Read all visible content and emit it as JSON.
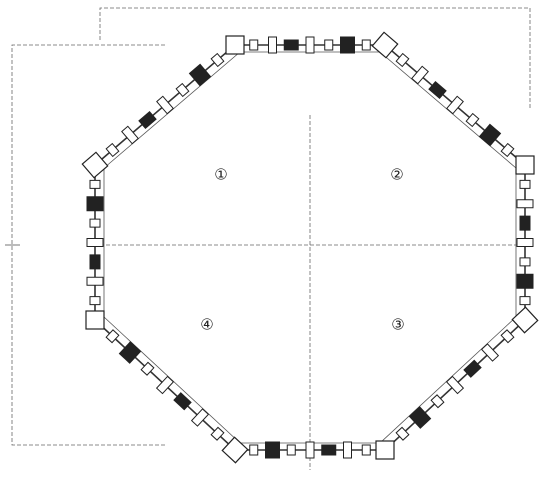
{
  "quadrants": [
    {
      "label": "①"
    },
    {
      "label": "②"
    },
    {
      "label": "③"
    },
    {
      "label": "④"
    }
  ]
}
